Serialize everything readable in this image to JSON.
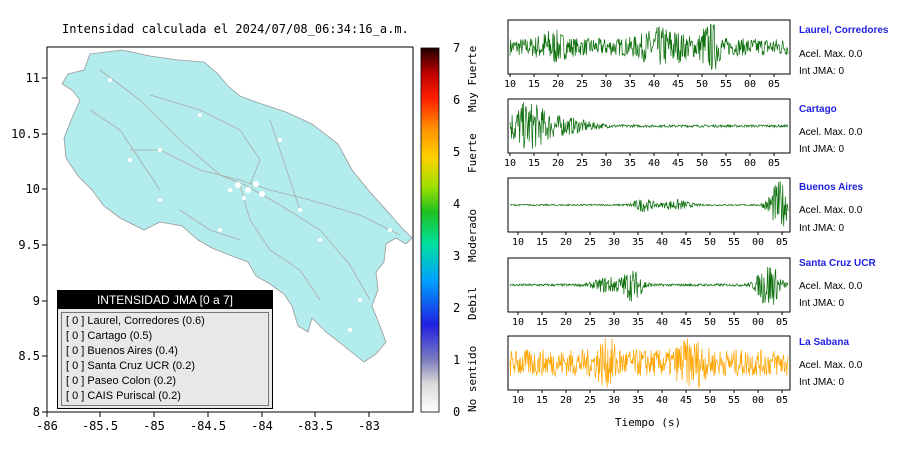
{
  "map": {
    "title": "Intensidad calculada el 2024/07/08_06:34:16_a.m.",
    "lon_ticks": [
      "-86",
      "-85.5",
      "-85",
      "-84.5",
      "-84",
      "-83.5",
      "-83"
    ],
    "lat_ticks": [
      "11",
      "10.5",
      "10",
      "9.5",
      "9",
      "8.5",
      "8"
    ]
  },
  "colors": {
    "land": "#b3ecec",
    "wave_green": "#0a6e0a",
    "wave_orange": "#ffa500",
    "station_name": "#1f1fe0"
  },
  "colorbar": {
    "ticks": [
      "0",
      "1",
      "2",
      "3",
      "4",
      "5",
      "6",
      "7"
    ],
    "categories": [
      "No sentido",
      "Debil",
      "Moderado",
      "Fuerte",
      "Muy Fuerte"
    ]
  },
  "legend": {
    "title": "INTENSIDAD JMA [0 a 7]",
    "rows": [
      "[ 0 ]  Laurel, Corredores (0.6)",
      "[ 0 ]  Cartago (0.5)",
      "[ 0 ]  Buenos Aires (0.4)",
      "[ 0 ]  Santa Cruz UCR (0.2)",
      "[ 0 ]  Paseo Colon (0.2)",
      "[ 0 ]  CAIS Puriscal (0.2)"
    ]
  },
  "stations": [
    {
      "name": "Laurel, Corredores",
      "acel": "Acel. Max. 0.0",
      "jma": "Int JMA: 0",
      "ticks": [
        "10",
        "15",
        "20",
        "25",
        "30",
        "35",
        "40",
        "45",
        "50",
        "55",
        "00",
        "05"
      ]
    },
    {
      "name": "Cartago",
      "acel": "Acel. Max. 0.0",
      "jma": "Int JMA: 0",
      "ticks": [
        "10",
        "15",
        "20",
        "25",
        "30",
        "35",
        "40",
        "45",
        "50",
        "55",
        "00",
        "05"
      ]
    },
    {
      "name": "Buenos Aires",
      "acel": "Acel. Max. 0.0",
      "jma": "Int JMA: 0",
      "ticks": [
        "10",
        "15",
        "20",
        "25",
        "30",
        "35",
        "40",
        "45",
        "50",
        "55",
        "00",
        "05"
      ]
    },
    {
      "name": "Santa Cruz UCR",
      "acel": "Acel. Max. 0.0",
      "jma": "Int JMA: 0",
      "ticks": [
        "10",
        "15",
        "20",
        "25",
        "30",
        "35",
        "40",
        "45",
        "50",
        "55",
        "00",
        "05"
      ]
    },
    {
      "name": "La Sabana",
      "acel": "Acel. Max. 0.0",
      "jma": "Int JMA: 0",
      "ticks": [
        "10",
        "15",
        "20",
        "25",
        "30",
        "35",
        "40",
        "45",
        "50",
        "55",
        "00",
        "05"
      ]
    }
  ],
  "xlabel": "Tiempo (s)",
  "chart_data": [
    {
      "type": "map",
      "title": "Intensidad calculada el 2024/07/08_06:34:16_a.m.",
      "xlim": [
        -86,
        -82.5
      ],
      "ylim": [
        8,
        11.4
      ],
      "colorbar_range": [
        0,
        7
      ]
    },
    {
      "type": "line",
      "xlabel": "Tiempo (s)",
      "series": [
        {
          "name": "Laurel, Corredores",
          "peak_time_label": "52"
        },
        {
          "name": "Cartago",
          "peak_time_label": "12"
        },
        {
          "name": "Buenos Aires",
          "peak_time_label": "05"
        },
        {
          "name": "Santa Cruz UCR",
          "peak_time_label": "00"
        },
        {
          "name": "La Sabana",
          "peak_time_label": "45"
        }
      ]
    }
  ]
}
